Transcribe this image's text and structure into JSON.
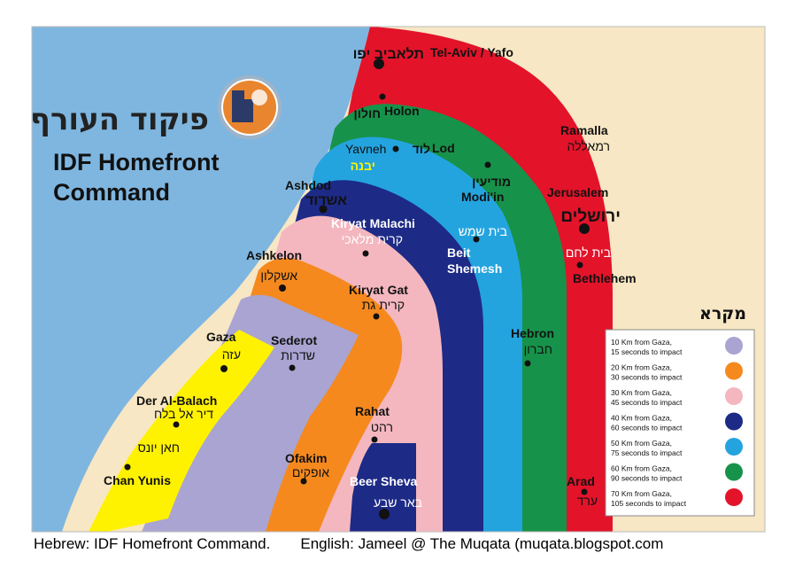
{
  "title": {
    "hebrew": "פיקוד העורף",
    "line1": "IDF Homefront",
    "line2": "Command"
  },
  "logo_icon": "homefront-command-emblem",
  "colors": {
    "sea": "#7fb6e0",
    "land": "#f7e7c4",
    "zone_10": "#a9a4d2",
    "zone_20": "#f5891e",
    "zone_30": "#f4b7bf",
    "zone_40": "#1d2a86",
    "zone_50": "#24a4df",
    "zone_60": "#17924a",
    "zone_70": "#e3132a",
    "gaza": "#fff200"
  },
  "legend": {
    "title": "מקרא",
    "items": [
      {
        "line1": "10 Km from Gaza,",
        "line2": "15 seconds to impact",
        "color": "#a9a4d2"
      },
      {
        "line1": "20 Km from Gaza,",
        "line2": "30 seconds to impact",
        "color": "#f5891e"
      },
      {
        "line1": "30 Km from Gaza,",
        "line2": "45 seconds to impact",
        "color": "#f4b7bf"
      },
      {
        "line1": "40 Km from Gaza,",
        "line2": "60 seconds to impact",
        "color": "#1d2a86"
      },
      {
        "line1": "50 Km from Gaza,",
        "line2": "75 seconds to impact",
        "color": "#24a4df"
      },
      {
        "line1": "60 Km from Gaza,",
        "line2": "90 seconds to impact",
        "color": "#17924a"
      },
      {
        "line1": "70 Km from Gaza,",
        "line2": "105 seconds to impact",
        "color": "#e3132a"
      }
    ]
  },
  "cities": {
    "telaviv": {
      "he": "תלאביב יפו",
      "en": "Tel-Aviv / Yafo"
    },
    "holon": {
      "he": "חולון",
      "en": "Holon"
    },
    "ramalla": {
      "en": "Ramalla",
      "he": "רמאללה"
    },
    "yavneh": {
      "en": "Yavneh",
      "he": "יבנה"
    },
    "lod": {
      "he": "לוד",
      "en": "Lod"
    },
    "modiin": {
      "he": "מודיעין",
      "en": "Modi'in"
    },
    "jerusalem": {
      "en": "Jerusalem",
      "he": "ירושלים"
    },
    "ashdod": {
      "en": "Ashdod",
      "he": "אשדוד"
    },
    "kiryat_malachi": {
      "en": "Kiryat Malachi",
      "he": "קרית מלאכי"
    },
    "beit_shemesh": {
      "he": "בית שמש",
      "en1": "Beit",
      "en2": "Shemesh"
    },
    "bethlehem": {
      "he": "בית לחם",
      "en": "Bethlehem"
    },
    "ashkelon": {
      "en": "Ashkelon",
      "he": "אשקלון"
    },
    "kiryat_gat": {
      "en": "Kiryat Gat",
      "he": "קרית גת"
    },
    "gaza": {
      "en": "Gaza",
      "he": "עזה"
    },
    "sederot": {
      "en": "Sederot",
      "he": "שדרות"
    },
    "hebron": {
      "en": "Hebron",
      "he": "חברון"
    },
    "der_al_balach": {
      "en": "Der Al-Balach",
      "he": "דיר אל בלח"
    },
    "rahat": {
      "en": "Rahat",
      "he": "רהט"
    },
    "chan_yunis": {
      "he": "חאן יונס",
      "en": "Chan Yunis"
    },
    "ofakim": {
      "en": "Ofakim",
      "he": "אופקים"
    },
    "beer_sheva": {
      "en": "Beer Sheva",
      "he": "באר שבע"
    },
    "arad": {
      "en": "Arad",
      "he": "ערד"
    }
  },
  "caption": {
    "hebrew_credit": "Hebrew: IDF Homefront Command.",
    "english_credit": "English: Jameel @ The Muqata (muqata.blogspot.com"
  }
}
